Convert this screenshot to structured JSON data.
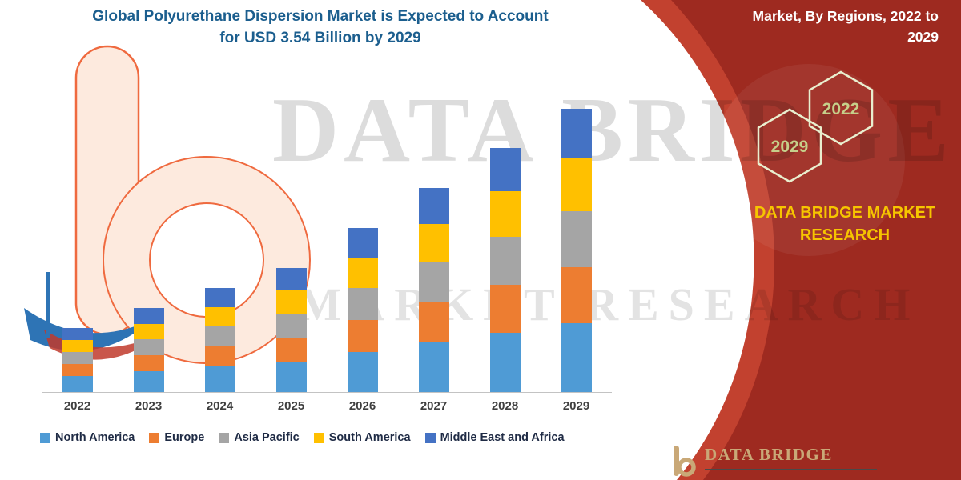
{
  "header": {
    "title_line1": "Global Polyurethane Dispersion Market is Expected to Account",
    "title_line2": "for USD 3.54 Billion by 2029"
  },
  "right_panel": {
    "banner_line1": "Market, By Regions, 2022 to",
    "banner_line2": "2029",
    "hexagon_top": "2022",
    "hexagon_bottom": "2029",
    "brand_line1": "DATA BRIDGE MARKET",
    "brand_line2": "RESEARCH"
  },
  "watermark": {
    "line1": "DATA BRIDGE",
    "line2": "MARKET RESEARCH"
  },
  "footer": {
    "brand": "DATA BRIDGE"
  },
  "colors": {
    "title_text": "#1b5e8e",
    "panel_red": "#9e2a20",
    "panel_red_light": "#c2412f",
    "brand_yellow": "#f6c500",
    "hexagon_text": "#c6cf8a",
    "footer_tan": "#c9a877"
  },
  "chart_data": {
    "type": "bar",
    "stacked": true,
    "title": "Global Polyurethane Dispersion Market is Expected to Account for USD 3.54 Billion by 2029",
    "unit": "USD Billion",
    "xlabel": "",
    "ylabel": "",
    "ylim": [
      0,
      3.6
    ],
    "grid": false,
    "legend_position": "bottom",
    "categories": [
      "2022",
      "2023",
      "2024",
      "2025",
      "2026",
      "2027",
      "2028",
      "2029"
    ],
    "series": [
      {
        "name": "North America",
        "color": "#4f9bd5",
        "values": [
          0.2,
          0.26,
          0.32,
          0.38,
          0.5,
          0.62,
          0.74,
          0.86
        ]
      },
      {
        "name": "Europe",
        "color": "#ed7d31",
        "values": [
          0.15,
          0.2,
          0.25,
          0.3,
          0.4,
          0.5,
          0.6,
          0.7
        ]
      },
      {
        "name": "Asia Pacific",
        "color": "#a5a5a5",
        "values": [
          0.15,
          0.2,
          0.25,
          0.3,
          0.4,
          0.5,
          0.6,
          0.7
        ]
      },
      {
        "name": "South America",
        "color": "#ffc000",
        "values": [
          0.15,
          0.19,
          0.24,
          0.29,
          0.38,
          0.48,
          0.57,
          0.66
        ]
      },
      {
        "name": "Middle East and Africa",
        "color": "#4472c4",
        "values": [
          0.15,
          0.2,
          0.24,
          0.28,
          0.37,
          0.45,
          0.54,
          0.62
        ]
      }
    ],
    "totals": [
      0.8,
      1.05,
      1.3,
      1.55,
      2.05,
      2.55,
      3.05,
      3.54
    ]
  }
}
